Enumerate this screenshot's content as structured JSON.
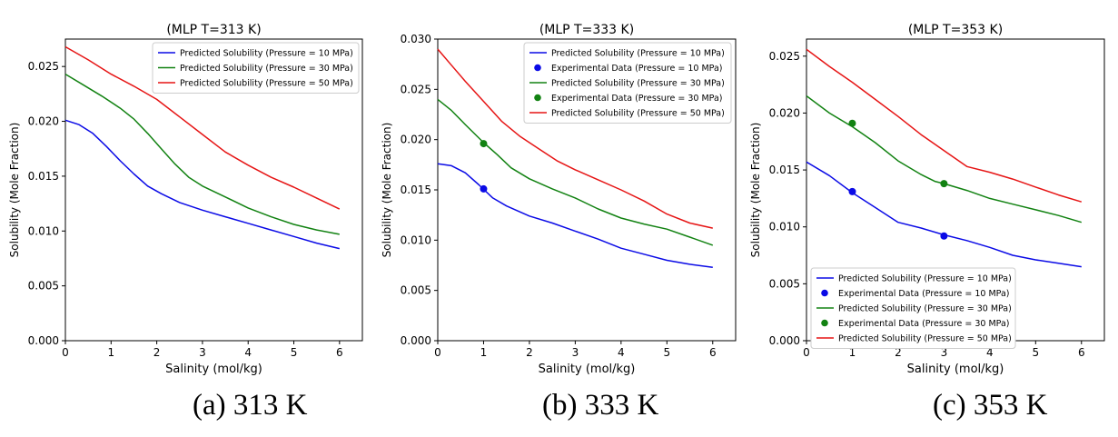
{
  "captions": [
    "(a)  313 K",
    "(b) 333 K",
    "(c) 353 K"
  ],
  "colors": {
    "p10": "#0a0ae6",
    "p30": "#128212",
    "p50": "#e61414"
  },
  "chart_data": [
    {
      "type": "line",
      "title": "(MLP  T=313 K)",
      "xlabel": "Salinity (mol/kg)",
      "ylabel": "Solubility (Mole Fraction)",
      "xlim": [
        0,
        6.5
      ],
      "ylim": [
        0,
        0.0275
      ],
      "xticks": [
        0,
        1,
        2,
        3,
        4,
        5,
        6
      ],
      "xtick_labels": [
        "0",
        "1",
        "2",
        "3",
        "4",
        "5",
        "6"
      ],
      "yticks": [
        0,
        0.005,
        0.01,
        0.015,
        0.02,
        0.025
      ],
      "ytick_labels": [
        "0.000",
        "0.005",
        "0.010",
        "0.015",
        "0.020",
        "0.025"
      ],
      "legend_position": "top-right",
      "series": [
        {
          "name": "Predicted Solubility (Pressure = 10 MPa)",
          "kind": "line",
          "color": "#0a0ae6",
          "x": [
            0,
            0.3,
            0.6,
            0.9,
            1.2,
            1.5,
            1.8,
            2.1,
            2.5,
            3,
            3.5,
            4,
            4.5,
            5,
            5.5,
            6
          ],
          "y": [
            0.0201,
            0.0197,
            0.0189,
            0.0177,
            0.0164,
            0.0152,
            0.0141,
            0.0134,
            0.0126,
            0.0119,
            0.0113,
            0.0107,
            0.0101,
            0.0095,
            0.0089,
            0.0084
          ]
        },
        {
          "name": "Predicted Solubility (Pressure = 30 MPa)",
          "kind": "line",
          "color": "#128212",
          "x": [
            0,
            0.4,
            0.8,
            1.2,
            1.5,
            1.8,
            2.1,
            2.4,
            2.7,
            3,
            3.5,
            4,
            4.5,
            5,
            5.5,
            6
          ],
          "y": [
            0.0243,
            0.0233,
            0.0223,
            0.0212,
            0.0202,
            0.0189,
            0.0175,
            0.0161,
            0.0149,
            0.0141,
            0.0131,
            0.0121,
            0.0113,
            0.0106,
            0.0101,
            0.0097
          ]
        },
        {
          "name": "Predicted Solubility (Pressure = 50 MPa)",
          "kind": "line",
          "color": "#e61414",
          "x": [
            0,
            0.5,
            1,
            1.5,
            2,
            2.5,
            3,
            3.5,
            4,
            4.5,
            5,
            5.5,
            6
          ],
          "y": [
            0.0268,
            0.0256,
            0.0243,
            0.0232,
            0.022,
            0.0204,
            0.0188,
            0.0172,
            0.016,
            0.0149,
            0.014,
            0.013,
            0.012
          ]
        }
      ]
    },
    {
      "type": "line",
      "title": "(MLP  T=333 K)",
      "xlabel": "Salinity (mol/kg)",
      "ylabel": "Solubility (Mole Fraction)",
      "xlim": [
        0,
        6.5
      ],
      "ylim": [
        0,
        0.03
      ],
      "xticks": [
        0,
        1,
        2,
        3,
        4,
        5,
        6
      ],
      "xtick_labels": [
        "0",
        "1",
        "2",
        "3",
        "4",
        "5",
        "6"
      ],
      "yticks": [
        0,
        0.005,
        0.01,
        0.015,
        0.02,
        0.025,
        0.03
      ],
      "ytick_labels": [
        "0.000",
        "0.005",
        "0.010",
        "0.015",
        "0.020",
        "0.025",
        "0.030"
      ],
      "legend_position": "top-right",
      "series": [
        {
          "name": "Predicted Solubility (Pressure = 10 MPa)",
          "kind": "line",
          "color": "#0a0ae6",
          "x": [
            0,
            0.3,
            0.6,
            0.9,
            1.2,
            1.5,
            2,
            2.5,
            3,
            3.5,
            4,
            4.5,
            5,
            5.5,
            6
          ],
          "y": [
            0.0176,
            0.0174,
            0.0167,
            0.0155,
            0.0142,
            0.0134,
            0.0124,
            0.0117,
            0.0109,
            0.0101,
            0.0092,
            0.0086,
            0.008,
            0.0076,
            0.0073
          ]
        },
        {
          "name": "Experimental Data (Pressure = 10 MPa)",
          "kind": "scatter",
          "color": "#0a0ae6",
          "x": [
            1
          ],
          "y": [
            0.0151
          ]
        },
        {
          "name": "Predicted Solubility (Pressure = 30 MPa)",
          "kind": "line",
          "color": "#128212",
          "x": [
            0,
            0.3,
            0.6,
            1,
            1.3,
            1.6,
            2,
            2.5,
            3,
            3.5,
            4,
            4.5,
            5,
            5.5,
            6
          ],
          "y": [
            0.024,
            0.0229,
            0.0215,
            0.0197,
            0.0185,
            0.0172,
            0.0161,
            0.0151,
            0.0142,
            0.0131,
            0.0122,
            0.0116,
            0.0111,
            0.0103,
            0.0095
          ]
        },
        {
          "name": "Experimental Data (Pressure = 30 MPa)",
          "kind": "scatter",
          "color": "#128212",
          "x": [
            1
          ],
          "y": [
            0.0196
          ]
        },
        {
          "name": "Predicted Solubility (Pressure = 50 MPa)",
          "kind": "line",
          "color": "#e61414",
          "x": [
            0,
            0.3,
            0.6,
            1,
            1.4,
            1.8,
            2.2,
            2.6,
            3,
            3.5,
            4,
            4.5,
            5,
            5.5,
            6
          ],
          "y": [
            0.029,
            0.0274,
            0.0258,
            0.0238,
            0.0218,
            0.0203,
            0.0191,
            0.0179,
            0.017,
            0.016,
            0.015,
            0.0139,
            0.0126,
            0.0117,
            0.0112
          ]
        }
      ]
    },
    {
      "type": "line",
      "title": "(MLP  T=353 K)",
      "xlabel": "Salinity (mol/kg)",
      "ylabel": "Solubility (Mole Fraction)",
      "xlim": [
        0,
        6.5
      ],
      "ylim": [
        0,
        0.0265
      ],
      "xticks": [
        0,
        1,
        2,
        3,
        4,
        5,
        6
      ],
      "xtick_labels": [
        "0",
        "1",
        "2",
        "3",
        "4",
        "5",
        "6"
      ],
      "yticks": [
        0,
        0.005,
        0.01,
        0.015,
        0.02,
        0.025
      ],
      "ytick_labels": [
        "0.000",
        "0.005",
        "0.010",
        "0.015",
        "0.020",
        "0.025"
      ],
      "legend_position": "bottom-left",
      "series": [
        {
          "name": "Predicted Solubility (Pressure = 10 MPa)",
          "kind": "line",
          "color": "#0a0ae6",
          "x": [
            0,
            0.5,
            1,
            1.5,
            2,
            2.5,
            3,
            3.5,
            4,
            4.5,
            5,
            5.5,
            6
          ],
          "y": [
            0.0157,
            0.0145,
            0.013,
            0.0117,
            0.0104,
            0.0099,
            0.0093,
            0.0088,
            0.0082,
            0.0075,
            0.0071,
            0.0068,
            0.0065
          ]
        },
        {
          "name": "Experimental Data (Pressure = 10 MPa)",
          "kind": "scatter",
          "color": "#0a0ae6",
          "x": [
            1,
            3
          ],
          "y": [
            0.0131,
            0.0092
          ]
        },
        {
          "name": "Predicted Solubility (Pressure = 30 MPa)",
          "kind": "line",
          "color": "#128212",
          "x": [
            0,
            0.5,
            1,
            1.5,
            2,
            2.5,
            2.8,
            3,
            3.5,
            4,
            4.5,
            5,
            5.5,
            6
          ],
          "y": [
            0.0215,
            0.02,
            0.0188,
            0.0174,
            0.0158,
            0.0146,
            0.014,
            0.0138,
            0.0132,
            0.0125,
            0.012,
            0.0115,
            0.011,
            0.0104
          ]
        },
        {
          "name": "Experimental Data (Pressure = 30 MPa)",
          "kind": "scatter",
          "color": "#128212",
          "x": [
            1,
            3
          ],
          "y": [
            0.0191,
            0.0138
          ]
        },
        {
          "name": "Predicted Solubility (Pressure = 50 MPa)",
          "kind": "line",
          "color": "#e61414",
          "x": [
            0,
            0.5,
            1,
            1.5,
            2,
            2.5,
            3,
            3.5,
            4,
            4.5,
            5,
            5.5,
            6
          ],
          "y": [
            0.0256,
            0.0241,
            0.0227,
            0.0212,
            0.0197,
            0.0181,
            0.0167,
            0.0153,
            0.0148,
            0.0142,
            0.0135,
            0.0128,
            0.0122
          ]
        }
      ]
    }
  ]
}
